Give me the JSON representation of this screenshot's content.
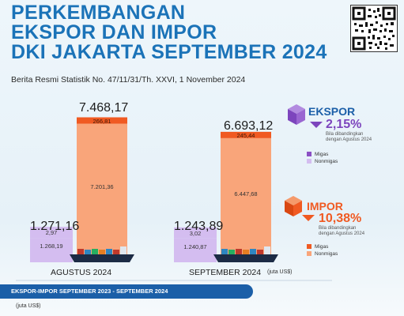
{
  "title": "PERKEMBANGAN\nEKSPOR DAN IMPOR\nDKI JAKARTA SEPTEMBER 2024",
  "subtitle": "Berita Resmi Statistik No. 47/11/31/Th. XXVI, 1 November 2024",
  "colors": {
    "impor_migas": "#f05a22",
    "impor_nonmigas": "#f9a57a",
    "ekspor_migas": "#8b4fc4",
    "ekspor_nonmigas": "#d4bdf0",
    "title_blue": "#1b73b8",
    "banner_blue": "#1b5fa8"
  },
  "icons": {
    "ekspor": "purple-cube-icon",
    "impor": "orange-cube-icon",
    "ship": "cargo-ship-icon",
    "qr": "qr-code-icon"
  },
  "chart_data": {
    "type": "bar",
    "stacked": true,
    "categories": [
      "AGUSTUS 2024",
      "SEPTEMBER 2024"
    ],
    "unit": "(juta US$)",
    "ekspor": {
      "totals": [
        "1.271,16",
        "1.243,89"
      ],
      "migas": [
        "2,97",
        "3,02"
      ],
      "nonmigas": [
        "1.268,19",
        "1.240,87"
      ],
      "values_migas": [
        2.97,
        3.02
      ],
      "values_nonmigas": [
        1268.19,
        1240.87
      ]
    },
    "impor": {
      "totals": [
        "7.468,17",
        "6.693,12"
      ],
      "migas": [
        "266,81",
        "245,44"
      ],
      "nonmigas": [
        "7.201,36",
        "6.447,68"
      ],
      "values_migas": [
        266.81,
        245.44
      ],
      "values_nonmigas": [
        7201.36,
        6447.68
      ]
    }
  },
  "side": {
    "ekspor": {
      "label": "EKSPOR",
      "change": "2,15%",
      "direction": "down",
      "note": "Bila dibandingkan dengan Agustus 2024",
      "legend_migas": "Migas",
      "legend_nonmigas": "Nonmigas"
    },
    "impor": {
      "label": "IMPOR",
      "change": "10,38%",
      "direction": "down",
      "note": "Bila dibandingkan dengan Agustus 2024",
      "legend_migas": "Migas",
      "legend_nonmigas": "Nonmigas"
    }
  },
  "banner": "EKSPOR-IMPOR SEPTEMBER 2023 - SEPTEMBER 2024",
  "bottom_unit": "(juta US$)"
}
